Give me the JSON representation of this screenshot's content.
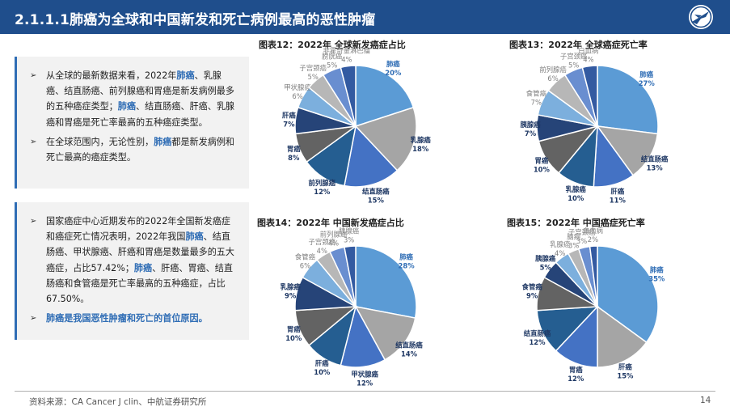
{
  "header": {
    "title": "2.1.1.1肺癌为全球和中国新发和死亡病例最高的恶性肿瘤"
  },
  "panel1": {
    "bullets": [
      [
        {
          "t": "从全球的最新数据来看，2022年"
        },
        {
          "t": "肺癌",
          "c": "hl"
        },
        {
          "t": "、乳腺癌、结直肠癌、前列腺癌和胃癌是新发病例最多的五种癌症类型；"
        },
        {
          "t": "肺癌",
          "c": "hl"
        },
        {
          "t": "、结直肠癌、肝癌、乳腺癌和胃癌是死亡率最高的五种癌症类型。"
        }
      ],
      [
        {
          "t": "在全球范围内，无论性别，"
        },
        {
          "t": "肺癌",
          "c": "hl"
        },
        {
          "t": "都是新发病例和死亡最高的癌症类型。"
        }
      ]
    ]
  },
  "panel2": {
    "bullets": [
      [
        {
          "t": "国家癌症中心近期发布的2022年全国新发癌症和癌症死亡情况表明，2022年我国"
        },
        {
          "t": "肺癌",
          "c": "hl"
        },
        {
          "t": "、结直肠癌、甲状腺癌、肝癌和胃癌是数量最多的五大癌症，占比57.42%；"
        },
        {
          "t": "肺癌",
          "c": "hl"
        },
        {
          "t": "、肝癌、胃癌、结直肠癌和食管癌是死亡率最高的五种癌症，占比67.50%。"
        }
      ],
      [
        {
          "t": "肺癌是我国恶性肿瘤和死亡的首位原因。",
          "c": "hl"
        }
      ]
    ]
  },
  "footer": {
    "source": "资料来源：CA Cancer J clin、中航证券研究所",
    "page": "14"
  },
  "chart_data": [
    {
      "type": "pie",
      "title": "图表12：2022年 全球新发癌症占比",
      "slices": [
        {
          "label": "肺癌",
          "value": 20,
          "color": "#5b9bd5"
        },
        {
          "label": "乳腺癌",
          "value": 18,
          "color": "#a5a5a5"
        },
        {
          "label": "结直肠癌",
          "value": 15,
          "color": "#4472c4"
        },
        {
          "label": "前列腺癌",
          "value": 12,
          "color": "#255e91"
        },
        {
          "label": "胃癌",
          "value": 8,
          "color": "#636363"
        },
        {
          "label": "肝癌",
          "value": 7,
          "color": "#264478"
        },
        {
          "label": "甲状腺癌",
          "value": 6,
          "color": "#7cafdd"
        },
        {
          "label": "子宫颈癌",
          "value": 5,
          "color": "#b7b7b7"
        },
        {
          "label": "膀胱癌",
          "value": 5,
          "color": "#698ed0"
        },
        {
          "label": "非霍奇金淋巴瘤",
          "value": 4,
          "color": "#335aa1"
        }
      ]
    },
    {
      "type": "pie",
      "title": "图表13：2022年 全球癌症死亡率",
      "slices": [
        {
          "label": "肺癌",
          "value": 27,
          "color": "#5b9bd5"
        },
        {
          "label": "结直肠癌",
          "value": 13,
          "color": "#a5a5a5"
        },
        {
          "label": "肝癌",
          "value": 11,
          "color": "#4472c4"
        },
        {
          "label": "乳腺癌",
          "value": 10,
          "color": "#255e91"
        },
        {
          "label": "胃癌",
          "value": 10,
          "color": "#636363"
        },
        {
          "label": "胰腺癌",
          "value": 7,
          "color": "#264478"
        },
        {
          "label": "食管癌",
          "value": 7,
          "color": "#7cafdd"
        },
        {
          "label": "前列腺癌",
          "value": 6,
          "color": "#b7b7b7"
        },
        {
          "label": "子宫颈癌",
          "value": 5,
          "color": "#698ed0"
        },
        {
          "label": "白血病",
          "value": 4,
          "color": "#335aa1"
        }
      ]
    },
    {
      "type": "pie",
      "title": "图表14：2022年 中国新发癌症占比",
      "slices": [
        {
          "label": "肺癌",
          "value": 28,
          "color": "#5b9bd5"
        },
        {
          "label": "结直肠癌",
          "value": 14,
          "color": "#a5a5a5"
        },
        {
          "label": "甲状腺癌",
          "value": 12,
          "color": "#4472c4"
        },
        {
          "label": "肝癌",
          "value": 10,
          "color": "#255e91"
        },
        {
          "label": "胃癌",
          "value": 10,
          "color": "#636363"
        },
        {
          "label": "乳腺癌",
          "value": 9,
          "color": "#264478"
        },
        {
          "label": "食管癌",
          "value": 6,
          "color": "#7cafdd"
        },
        {
          "label": "子宫颈癌",
          "value": 4,
          "color": "#b7b7b7"
        },
        {
          "label": "前列腺癌",
          "value": 4,
          "color": "#698ed0"
        },
        {
          "label": "胰腺癌",
          "value": 3,
          "color": "#335aa1"
        }
      ]
    },
    {
      "type": "pie",
      "title": "图表15：2022年 中国癌症死亡率",
      "slices": [
        {
          "label": "肺癌",
          "value": 35,
          "color": "#5b9bd5"
        },
        {
          "label": "肝癌",
          "value": 15,
          "color": "#a5a5a5"
        },
        {
          "label": "胃癌",
          "value": 12,
          "color": "#4472c4"
        },
        {
          "label": "结直肠癌",
          "value": 12,
          "color": "#255e91"
        },
        {
          "label": "食管癌",
          "value": 9,
          "color": "#636363"
        },
        {
          "label": "胰腺癌",
          "value": 5,
          "color": "#264478"
        },
        {
          "label": "乳腺癌",
          "value": 4,
          "color": "#7cafdd"
        },
        {
          "label": "脑癌",
          "value": 3,
          "color": "#b7b7b7"
        },
        {
          "label": "子宫颈癌",
          "value": 3,
          "color": "#698ed0"
        },
        {
          "label": "白血病",
          "value": 2,
          "color": "#335aa1"
        }
      ]
    }
  ]
}
